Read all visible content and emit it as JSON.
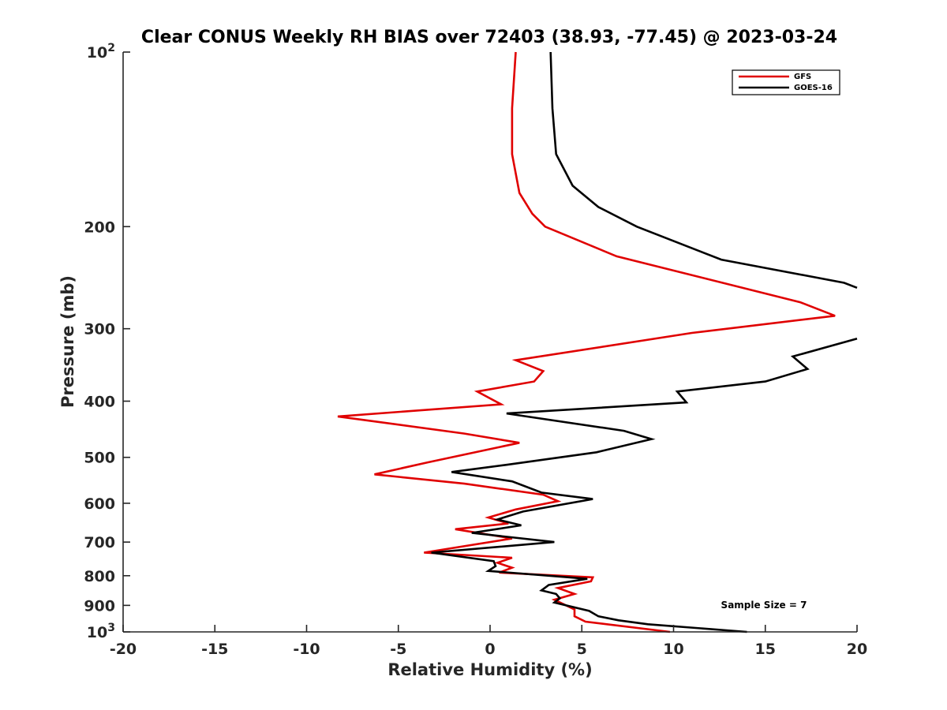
{
  "chart_data": {
    "type": "line",
    "title": "Clear CONUS Weekly RH BIAS over 72403 (38.93, -77.45) @ 2023-03-24",
    "xlabel": "Relative Humidity (%)",
    "ylabel": "Pressure (mb)",
    "xlim": [
      -20,
      20
    ],
    "ylim": [
      100,
      1000
    ],
    "y_scale": "log",
    "y_reversed": true,
    "grid": false,
    "legend_position": "top-right",
    "x_ticks": [
      "-20",
      "-15",
      "-10",
      "-5",
      "0",
      "5",
      "10",
      "15",
      "20"
    ],
    "y_ticks": [
      {
        "value": 100,
        "base": "10",
        "exp": "2"
      },
      {
        "value": 200,
        "label": "200"
      },
      {
        "value": 300,
        "label": "300"
      },
      {
        "value": 400,
        "label": "400"
      },
      {
        "value": 500,
        "label": "500"
      },
      {
        "value": 600,
        "label": "600"
      },
      {
        "value": 700,
        "label": "700"
      },
      {
        "value": 800,
        "label": "800"
      },
      {
        "value": 900,
        "label": "900"
      },
      {
        "value": 1000,
        "base": "10",
        "exp": "3"
      }
    ],
    "series": [
      {
        "name": "GFS",
        "color": "#e00000",
        "points": [
          [
            1.4,
            100
          ],
          [
            1.2,
            125
          ],
          [
            1.2,
            150
          ],
          [
            1.6,
            175
          ],
          [
            2.3,
            190
          ],
          [
            3.0,
            200
          ],
          [
            6.9,
            225
          ],
          [
            16.9,
            270
          ],
          [
            18.8,
            285
          ],
          [
            11.0,
            305
          ],
          [
            1.4,
            340
          ],
          [
            2.9,
            355
          ],
          [
            2.4,
            370
          ],
          [
            -0.7,
            385
          ],
          [
            0.6,
            405
          ],
          [
            -8.3,
            425
          ],
          [
            -1.4,
            455
          ],
          [
            1.6,
            472
          ],
          [
            -3.4,
            510
          ],
          [
            -6.3,
            535
          ],
          [
            -1.4,
            555
          ],
          [
            2.9,
            580
          ],
          [
            3.7,
            595
          ],
          [
            1.4,
            615
          ],
          [
            -0.1,
            635
          ],
          [
            1.0,
            650
          ],
          [
            -1.9,
            665
          ],
          [
            1.2,
            690
          ],
          [
            -3.6,
            730
          ],
          [
            1.2,
            745
          ],
          [
            0.4,
            760
          ],
          [
            1.2,
            775
          ],
          [
            0.5,
            790
          ],
          [
            5.6,
            805
          ],
          [
            5.5,
            818
          ],
          [
            3.7,
            840
          ],
          [
            4.6,
            860
          ],
          [
            3.5,
            880
          ],
          [
            4.6,
            915
          ],
          [
            4.6,
            940
          ],
          [
            5.2,
            960
          ],
          [
            9.8,
            1000
          ]
        ]
      },
      {
        "name": "GOES-16",
        "color": "#000000",
        "points": [
          [
            3.3,
            100
          ],
          [
            3.4,
            125
          ],
          [
            3.6,
            150
          ],
          [
            4.5,
            170
          ],
          [
            5.9,
            185
          ],
          [
            8.0,
            200
          ],
          [
            12.6,
            228
          ],
          [
            19.3,
            250
          ],
          [
            20.0,
            255
          ]
        ],
        "points_lower": [
          [
            20.0,
            312
          ],
          [
            16.5,
            335
          ],
          [
            17.3,
            352
          ],
          [
            15.0,
            370
          ],
          [
            10.2,
            385
          ],
          [
            10.7,
            402
          ],
          [
            0.9,
            420
          ],
          [
            7.3,
            450
          ],
          [
            8.8,
            465
          ],
          [
            5.8,
            490
          ],
          [
            0.9,
            515
          ],
          [
            -2.1,
            530
          ],
          [
            1.2,
            550
          ],
          [
            2.8,
            575
          ],
          [
            5.6,
            590
          ],
          [
            1.8,
            620
          ],
          [
            0.4,
            640
          ],
          [
            1.7,
            655
          ],
          [
            -1.0,
            675
          ],
          [
            3.5,
            700
          ],
          [
            -3.2,
            730
          ],
          [
            0.2,
            755
          ],
          [
            0.3,
            770
          ],
          [
            -0.1,
            785
          ],
          [
            5.3,
            810
          ],
          [
            3.2,
            830
          ],
          [
            2.8,
            848
          ],
          [
            3.6,
            860
          ],
          [
            3.8,
            875
          ],
          [
            3.5,
            890
          ],
          [
            5.4,
            920
          ],
          [
            5.9,
            940
          ],
          [
            7.0,
            955
          ],
          [
            8.6,
            970
          ],
          [
            14.0,
            1000
          ]
        ]
      }
    ],
    "annotation": "Sample Size = 7"
  }
}
